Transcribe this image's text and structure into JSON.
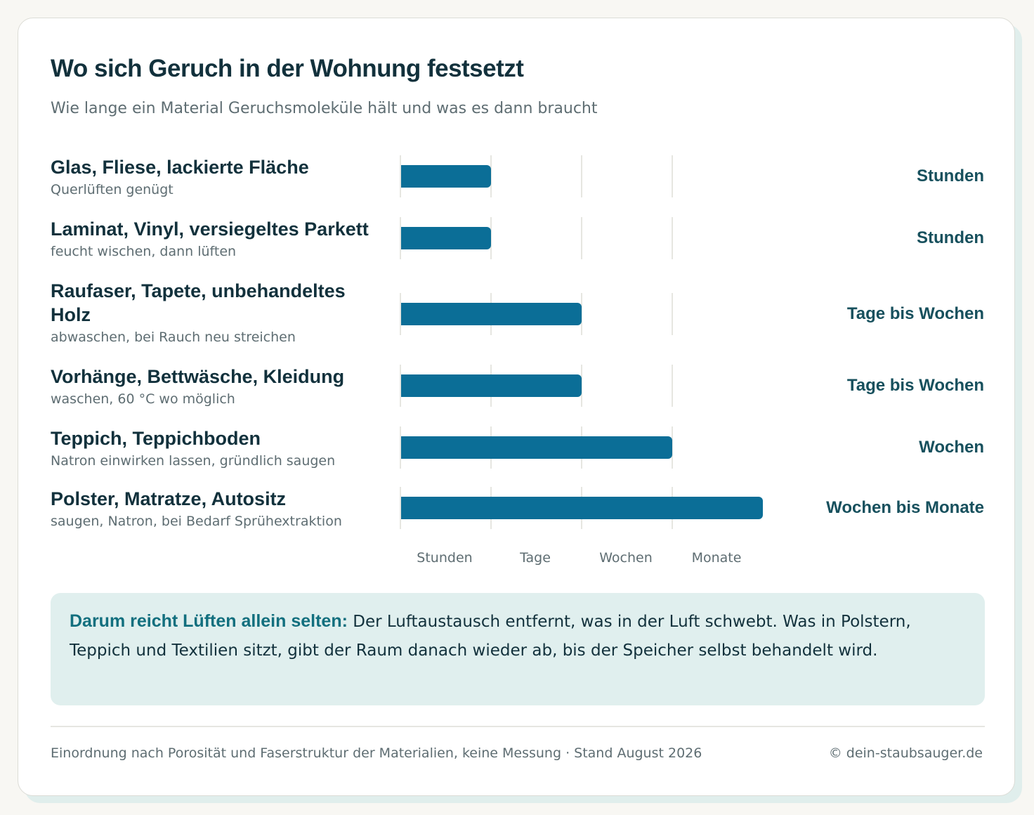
{
  "title": "Wo sich Geruch in der Wohnung festsetzt",
  "subtitle": "Wie lange ein Material Geruchsmoleküle hält und was es dann braucht",
  "colors": {
    "bar": "#0b6e97",
    "value_text": "#17505d",
    "note_background": "#e0efee",
    "note_lead": "#126f7e"
  },
  "chart_data": {
    "type": "bar",
    "orientation": "horizontal",
    "x_ticks": [
      "Stunden",
      "Tage",
      "Wochen",
      "Monate"
    ],
    "grid": true,
    "rows": [
      {
        "label": "Glas, Fliese, lackierte Fläche",
        "hint": "Querlüften genügt",
        "level": 1,
        "value_label": "Stunden"
      },
      {
        "label": "Laminat, Vinyl, versiegeltes Parkett",
        "hint": "feucht wischen, dann lüften",
        "level": 1,
        "value_label": "Stunden"
      },
      {
        "label": "Raufaser, Tapete, unbehandeltes Holz",
        "hint": "abwaschen, bei Rauch neu streichen",
        "level": 2,
        "value_label": "Tage bis Wochen"
      },
      {
        "label": "Vorhänge, Bettwäsche, Kleidung",
        "hint": "waschen, 60 °C wo möglich",
        "level": 2,
        "value_label": "Tage bis Wochen"
      },
      {
        "label": "Teppich, Teppichboden",
        "hint": "Natron einwirken lassen, gründlich saugen",
        "level": 3,
        "value_label": "Wochen"
      },
      {
        "label": "Polster, Matratze, Autositz",
        "hint": "saugen, Natron, bei Bedarf Sprühextraktion",
        "level": 4,
        "value_label": "Wochen bis Monate"
      }
    ]
  },
  "note": {
    "lead": "Darum reicht Lüften allein selten:",
    "text": "Der Luftaustausch entfernt, was in der Luft schwebt. Was in Polstern, Teppich und Textilien sitzt, gibt der Raum danach wieder ab, bis der Speicher selbst behandelt wird."
  },
  "footer": {
    "source": "Einordnung nach Porosität und Faserstruktur der Materialien, keine Messung · Stand August 2026",
    "copyright": "© dein-staubsauger.de"
  }
}
